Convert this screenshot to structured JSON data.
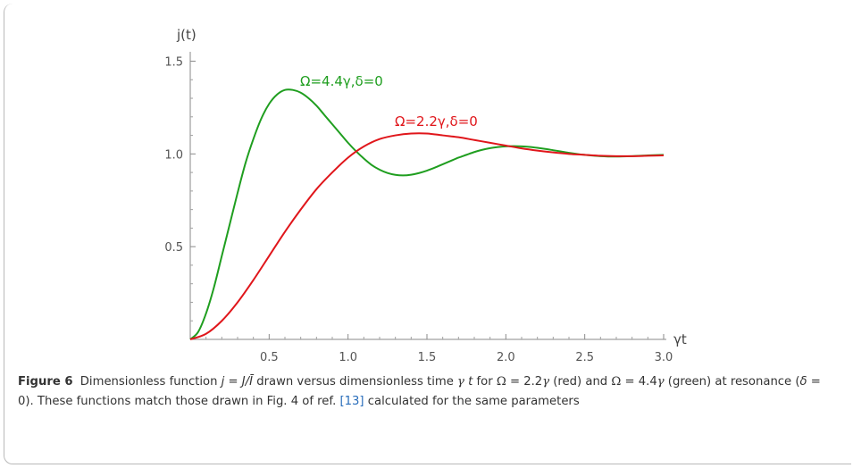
{
  "chart_data": {
    "type": "line",
    "xlabel": "γt",
    "ylabel": "j(t)",
    "xlim": [
      0,
      3.0
    ],
    "ylim": [
      0,
      1.55
    ],
    "x_ticks": [
      "0.5",
      "1.0",
      "1.5",
      "2.0",
      "2.5",
      "3.0"
    ],
    "y_ticks": [
      "0.5",
      "1.0",
      "1.5"
    ],
    "grid": false,
    "series": [
      {
        "name": "Ω=4.4γ,δ=0",
        "color": "#1f9e1f",
        "x": [
          0,
          0.05,
          0.1,
          0.15,
          0.2,
          0.25,
          0.3,
          0.35,
          0.4,
          0.45,
          0.5,
          0.55,
          0.6,
          0.65,
          0.7,
          0.75,
          0.8,
          0.85,
          0.9,
          0.95,
          1.0,
          1.05,
          1.1,
          1.15,
          1.2,
          1.25,
          1.3,
          1.35,
          1.4,
          1.45,
          1.5,
          1.55,
          1.6,
          1.65,
          1.7,
          1.75,
          1.8,
          1.85,
          1.9,
          1.95,
          2.0,
          2.05,
          2.1,
          2.15,
          2.2,
          2.25,
          2.3,
          2.35,
          2.4,
          2.45,
          2.5,
          2.6,
          2.7,
          2.8,
          2.9,
          3.0
        ],
        "values": [
          0,
          0.04,
          0.14,
          0.28,
          0.45,
          0.62,
          0.79,
          0.95,
          1.08,
          1.19,
          1.27,
          1.32,
          1.345,
          1.345,
          1.33,
          1.3,
          1.26,
          1.21,
          1.16,
          1.11,
          1.06,
          1.015,
          0.975,
          0.94,
          0.915,
          0.897,
          0.887,
          0.884,
          0.888,
          0.897,
          0.91,
          0.926,
          0.944,
          0.962,
          0.98,
          0.995,
          1.01,
          1.022,
          1.031,
          1.037,
          1.041,
          1.042,
          1.041,
          1.038,
          1.033,
          1.027,
          1.02,
          1.013,
          1.006,
          1.0,
          0.995,
          0.988,
          0.986,
          0.988,
          0.992,
          0.995
        ]
      },
      {
        "name": "Ω=2.2γ,δ=0",
        "color": "#e0161b",
        "x": [
          0,
          0.1,
          0.2,
          0.3,
          0.4,
          0.5,
          0.6,
          0.7,
          0.8,
          0.9,
          1.0,
          1.1,
          1.2,
          1.3,
          1.4,
          1.5,
          1.6,
          1.7,
          1.8,
          1.9,
          2.0,
          2.1,
          2.2,
          2.3,
          2.4,
          2.5,
          2.6,
          2.7,
          2.8,
          2.9,
          3.0
        ],
        "values": [
          0,
          0.03,
          0.1,
          0.2,
          0.32,
          0.45,
          0.58,
          0.7,
          0.81,
          0.9,
          0.98,
          1.04,
          1.08,
          1.1,
          1.11,
          1.11,
          1.1,
          1.09,
          1.075,
          1.06,
          1.045,
          1.03,
          1.018,
          1.008,
          1.0,
          0.995,
          0.99,
          0.988,
          0.988,
          0.99,
          0.992
        ]
      }
    ]
  },
  "caption": {
    "figure_label": "Figure 6",
    "t1": "Dimensionless function ",
    "t2": "j",
    "t3": " = ",
    "t4": "J/Ī",
    "t5": " drawn versus dimensionless time ",
    "t6": "γ",
    "t7": " ",
    "t8": "t",
    "t9": " for ",
    "t10": "Ω",
    "t11": " = 2.2",
    "t12": "γ",
    "t13": " (red) and ",
    "t14": "Ω",
    "t15": " = 4.4",
    "t16": "γ",
    "t17": " (green) at resonance (",
    "t18": "δ",
    "t19": " = 0). These functions match those drawn in Fig. 4 of ref. ",
    "ref": "[13]",
    "t20": " calculated for the same parameters"
  }
}
